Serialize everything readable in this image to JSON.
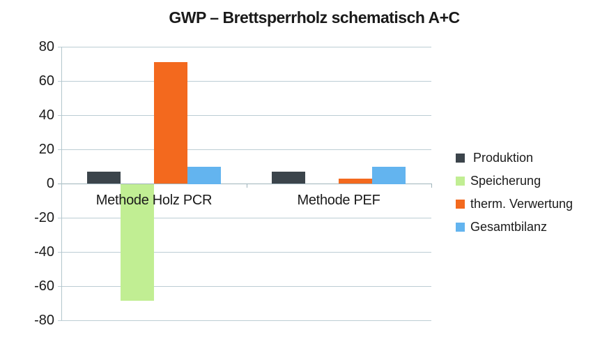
{
  "title": "GWP – Brettsperrholz schematisch A+C",
  "colors": {
    "produktion": "#3b444b",
    "speicherung": "#c1ee93",
    "therm_verwertung": "#f3691e",
    "gesamtbilanz": "#63b4ef",
    "gridline": "#bccdd4",
    "zero_line": "#9fb4bb",
    "text": "#1a1a1a",
    "background": "#ffffff"
  },
  "chart_data": {
    "type": "bar",
    "title": "GWP – Brettsperrholz schematisch A+C",
    "categories": [
      "Methode Holz PCR",
      "Methode PEF"
    ],
    "series": [
      {
        "name": "Produktion",
        "color": "#3b444b",
        "values": [
          7,
          7
        ]
      },
      {
        "name": "Speicherung",
        "color": "#c1ee93",
        "values": [
          -68,
          0
        ]
      },
      {
        "name": "therm. Verwertung",
        "color": "#f3691e",
        "values": [
          71,
          3
        ]
      },
      {
        "name": "Gesamtbilanz",
        "color": "#63b4ef",
        "values": [
          10,
          10
        ]
      }
    ],
    "xlabel": "",
    "ylabel": "",
    "ylim": [
      -80,
      80
    ],
    "yticks": [
      80,
      60,
      40,
      20,
      0,
      -20,
      -40,
      -60,
      -80
    ],
    "grid": true,
    "legend_position": "right"
  }
}
